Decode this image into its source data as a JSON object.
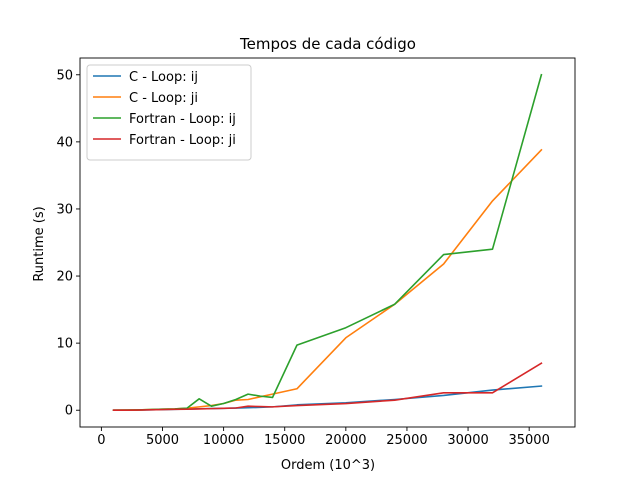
{
  "chart_data": {
    "type": "line",
    "title": "Tempos de cada código",
    "xlabel": "Ordem (10^3)",
    "ylabel": "Runtime (s)",
    "xlim": [
      -1750,
      38750
    ],
    "ylim": [
      -2.5,
      52.5
    ],
    "xticks": [
      0,
      5000,
      10000,
      15000,
      20000,
      25000,
      30000,
      35000
    ],
    "yticks": [
      0,
      10,
      20,
      30,
      40,
      50
    ],
    "legend_position": "upper-left",
    "grid": false,
    "series": [
      {
        "name": "C - Loop: ij",
        "color": "#1f77b4",
        "points": [
          [
            1000,
            0.0
          ],
          [
            2000,
            0.01
          ],
          [
            3000,
            0.03
          ],
          [
            4000,
            0.06
          ],
          [
            5000,
            0.1
          ],
          [
            6000,
            0.14
          ],
          [
            7000,
            0.18
          ],
          [
            8000,
            0.22
          ],
          [
            9000,
            0.25
          ],
          [
            10000,
            0.28
          ],
          [
            11000,
            0.32
          ],
          [
            12000,
            0.38
          ],
          [
            13000,
            0.43
          ],
          [
            14000,
            0.5
          ],
          [
            16000,
            0.8
          ],
          [
            20000,
            1.1
          ],
          [
            24000,
            1.6
          ],
          [
            28000,
            2.2
          ],
          [
            32000,
            3.0
          ],
          [
            36000,
            3.6
          ]
        ]
      },
      {
        "name": "C - Loop: ji",
        "color": "#ff7f0e",
        "points": [
          [
            1000,
            0.0
          ],
          [
            2000,
            0.02
          ],
          [
            3000,
            0.05
          ],
          [
            4000,
            0.1
          ],
          [
            5000,
            0.15
          ],
          [
            6000,
            0.2
          ],
          [
            7000,
            0.3
          ],
          [
            8000,
            0.5
          ],
          [
            9000,
            0.7
          ],
          [
            10000,
            1.0
          ],
          [
            11000,
            1.5
          ],
          [
            12000,
            1.6
          ],
          [
            13000,
            2.0
          ],
          [
            14000,
            2.4
          ],
          [
            16000,
            3.2
          ],
          [
            20000,
            10.8
          ],
          [
            24000,
            15.8
          ],
          [
            28000,
            21.8
          ],
          [
            32000,
            31.2
          ],
          [
            36000,
            38.8
          ]
        ]
      },
      {
        "name": "Fortran - Loop: ij",
        "color": "#2ca02c",
        "points": [
          [
            1000,
            0.0
          ],
          [
            2000,
            0.02
          ],
          [
            3000,
            0.05
          ],
          [
            4000,
            0.1
          ],
          [
            5000,
            0.15
          ],
          [
            6000,
            0.2
          ],
          [
            7000,
            0.3
          ],
          [
            8000,
            1.7
          ],
          [
            9000,
            0.6
          ],
          [
            10000,
            1.0
          ],
          [
            11000,
            1.6
          ],
          [
            12000,
            2.4
          ],
          [
            13000,
            2.1
          ],
          [
            14000,
            1.9
          ],
          [
            16000,
            9.7
          ],
          [
            20000,
            12.3
          ],
          [
            24000,
            15.8
          ],
          [
            28000,
            23.2
          ],
          [
            32000,
            24.0
          ],
          [
            36000,
            50.0
          ]
        ]
      },
      {
        "name": "Fortran - Loop: ji",
        "color": "#d62728",
        "points": [
          [
            1000,
            0.0
          ],
          [
            2000,
            0.01
          ],
          [
            3000,
            0.03
          ],
          [
            4000,
            0.06
          ],
          [
            5000,
            0.1
          ],
          [
            6000,
            0.13
          ],
          [
            7000,
            0.16
          ],
          [
            8000,
            0.2
          ],
          [
            9000,
            0.24
          ],
          [
            10000,
            0.28
          ],
          [
            11000,
            0.33
          ],
          [
            12000,
            0.6
          ],
          [
            13000,
            0.55
          ],
          [
            14000,
            0.5
          ],
          [
            16000,
            0.7
          ],
          [
            20000,
            1.0
          ],
          [
            24000,
            1.5
          ],
          [
            28000,
            2.6
          ],
          [
            32000,
            2.6
          ],
          [
            36000,
            7.0
          ]
        ]
      }
    ]
  }
}
